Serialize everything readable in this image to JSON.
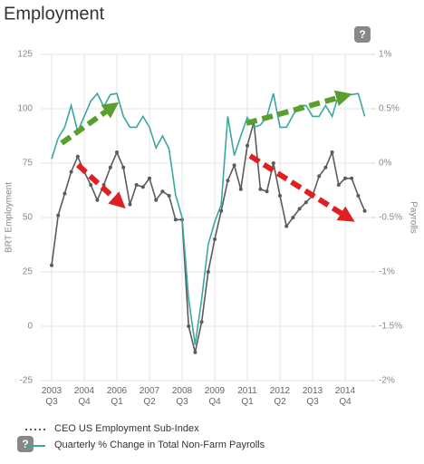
{
  "chart_data": {
    "type": "line",
    "title": "Employment",
    "y_label": "BRT Employment",
    "y2_label": "Payrolls",
    "categories": [
      "2003 Q3",
      null,
      null,
      null,
      null,
      "2004 Q4",
      null,
      null,
      null,
      null,
      "2006 Q1",
      null,
      null,
      null,
      null,
      "2007 Q2",
      null,
      null,
      null,
      null,
      "2008 Q3",
      null,
      null,
      null,
      null,
      "2009 Q4",
      null,
      null,
      null,
      null,
      "2011 Q1",
      null,
      null,
      null,
      null,
      "2012 Q2",
      null,
      null,
      null,
      null,
      "2013 Q3",
      null,
      null,
      null,
      null,
      "2014 Q4",
      null,
      null,
      null
    ],
    "series": [
      {
        "name": "CEO US Employment Sub-Index",
        "color": "#5b5b5b",
        "axis": "y",
        "values": [
          28,
          51,
          61,
          71,
          78,
          71,
          65,
          58,
          65,
          73,
          80,
          73,
          56,
          65,
          64,
          68,
          58,
          62,
          60,
          49,
          49,
          0,
          -12,
          2,
          25,
          40,
          53,
          67,
          74,
          63,
          83,
          94,
          63,
          62,
          75,
          60,
          46,
          50,
          54,
          57,
          60,
          69,
          73,
          80,
          65,
          68,
          68,
          60,
          53
        ]
      },
      {
        "name": "Quarterly % Change in Total Non-Farm Payrolls",
        "color": "#3aa8a0",
        "axis": "y2",
        "values": [
          0.04,
          0.23,
          0.33,
          0.53,
          0.29,
          0.43,
          0.57,
          0.64,
          0.52,
          0.63,
          0.64,
          0.43,
          0.33,
          0.33,
          0.43,
          0.33,
          0.14,
          0.25,
          0.13,
          -0.29,
          -0.5,
          -1.25,
          -1.67,
          -1.25,
          -0.75,
          -0.54,
          -0.38,
          0.43,
          0.07,
          0.25,
          0.42,
          0.33,
          0.35,
          0.43,
          0.64,
          0.33,
          0.33,
          0.44,
          0.53,
          0.53,
          0.43,
          0.43,
          0.53,
          0.43,
          0.63,
          0.63,
          0.63,
          0.64,
          0.43
        ]
      }
    ],
    "ylim": [
      -25,
      125
    ],
    "yticks": [
      -25,
      0,
      25,
      50,
      75,
      100,
      125
    ],
    "y2lim": [
      -2,
      1
    ],
    "y2ticks": [
      {
        "value": -2,
        "label": "-2%"
      },
      {
        "value": -1.5,
        "label": "-1.5%"
      },
      {
        "value": -1,
        "label": "-1%"
      },
      {
        "value": -0.5,
        "label": "-0.5%"
      },
      {
        "value": 0,
        "label": "0%"
      },
      {
        "value": 0.5,
        "label": "0.5%"
      },
      {
        "value": 1,
        "label": "1%"
      }
    ],
    "grid": true
  }
}
